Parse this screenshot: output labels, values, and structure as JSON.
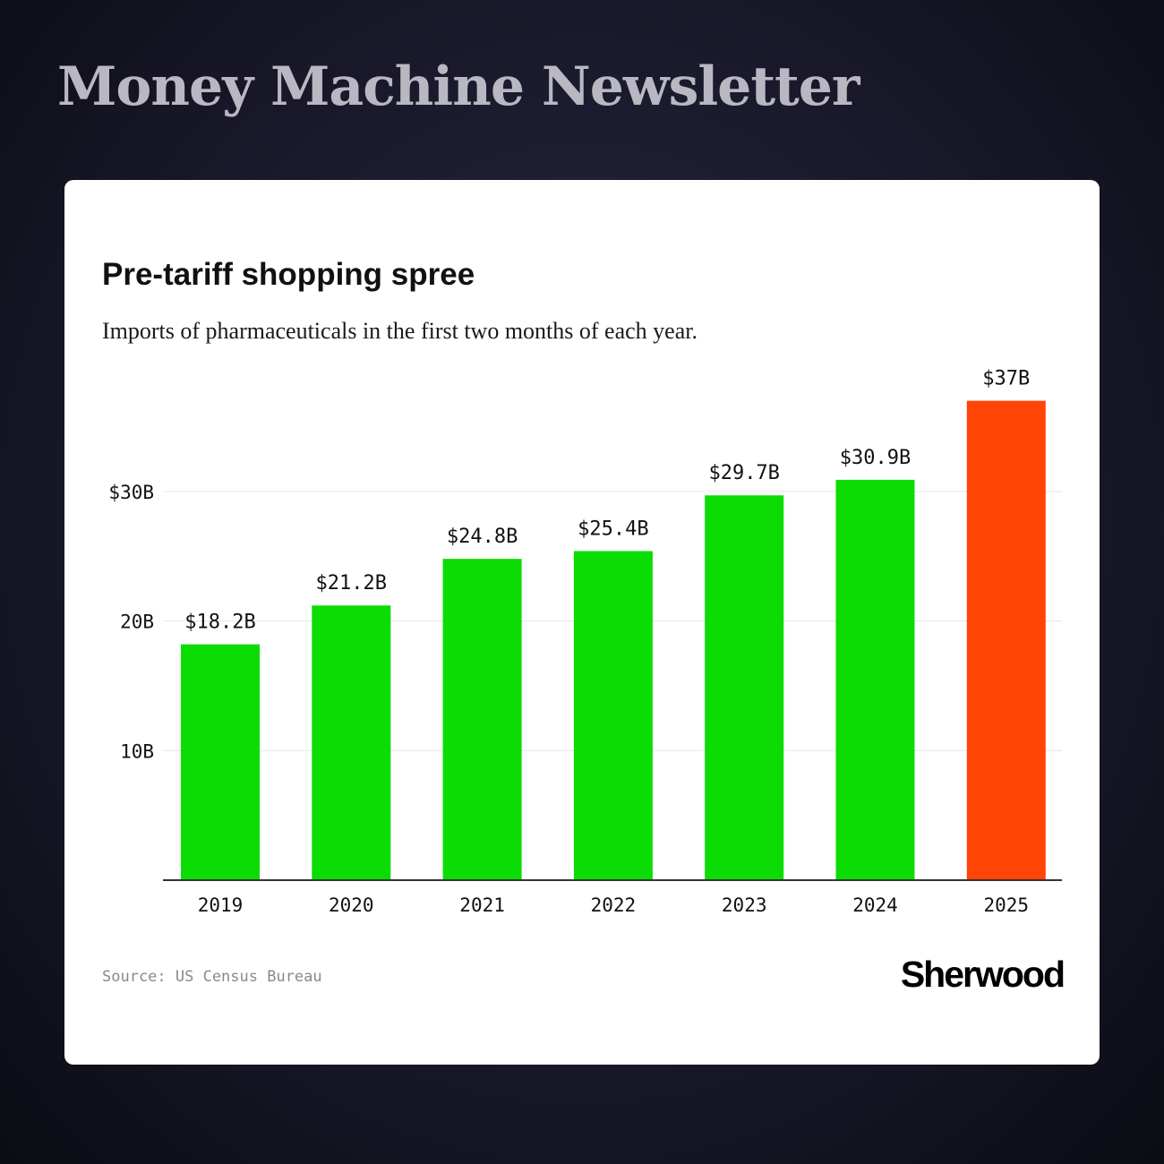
{
  "header": {
    "newsletter_title": "Money Machine Newsletter"
  },
  "card": {
    "source": "Source: US Census Bureau",
    "brand": "Sherwood"
  },
  "colors": {
    "bar_default": "#0bdc04",
    "bar_highlight": "#ff4405",
    "gridline": "#e6e6e6",
    "axis": "#333333"
  },
  "chart_data": {
    "type": "bar",
    "title": "Pre-tariff shopping spree",
    "subtitle": "Imports of pharmaceuticals in the first two months of each year.",
    "xlabel": "",
    "ylabel": "",
    "categories": [
      "2019",
      "2020",
      "2021",
      "2022",
      "2023",
      "2024",
      "2025"
    ],
    "values": [
      18.2,
      21.2,
      24.8,
      25.4,
      29.7,
      30.9,
      37
    ],
    "value_labels": [
      "$18.2B",
      "$21.2B",
      "$24.8B",
      "$25.4B",
      "$29.7B",
      "$30.9B",
      "$37B"
    ],
    "highlight_category": "2025",
    "ylim": [
      0,
      37
    ],
    "yticks": [
      10,
      20,
      30
    ],
    "ytick_labels": [
      "10B",
      "20B",
      "$30B"
    ],
    "grid": true,
    "legend": "none"
  }
}
